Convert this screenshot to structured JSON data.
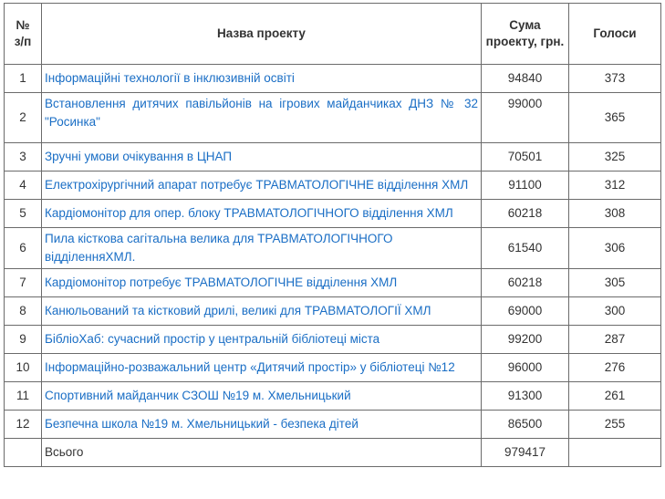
{
  "headers": {
    "num": "№\nз/п",
    "name": "Назва проекту",
    "sum": "Сума проекту, грн.",
    "votes": "Голоси"
  },
  "rows": [
    {
      "num": "1",
      "name": "Інформаційні технології в інклюзивній освіті",
      "sum": "94840",
      "votes": "373"
    },
    {
      "num": "2",
      "name": "Встановлення дитячих павільйонів на ігрових майданчиках ДНЗ № 32 \"Росинка\"",
      "sum": "99000",
      "votes": "365"
    },
    {
      "num": "3",
      "name": "Зручні умови очікування в ЦНАП",
      "sum": "70501",
      "votes": "325"
    },
    {
      "num": "4",
      "name": "Електрохірургічний апарат потребує ТРАВМАТОЛОГІЧНЕ відділення ХМЛ",
      "sum": "91100",
      "votes": "312"
    },
    {
      "num": "5",
      "name": "Кардіомонітор для опер. блоку ТРАВМАТОЛОГІЧНОГО відділення ХМЛ",
      "sum": "60218",
      "votes": "308"
    },
    {
      "num": "6",
      "name": "Пила кісткова сагітальна велика для ТРАВМАТОЛОГІЧНОГО відділенняХМЛ.",
      "sum": "61540",
      "votes": "306"
    },
    {
      "num": "7",
      "name": "Кардіомонітор потребує ТРАВМАТОЛОГІЧНЕ відділення ХМЛ",
      "sum": "60218",
      "votes": "305"
    },
    {
      "num": "8",
      "name": "Канюльований та кістковий дрилі, великі для ТРАВМАТОЛОГІЇ ХМЛ",
      "sum": "69000",
      "votes": "300"
    },
    {
      "num": "9",
      "name": "БібліоХаб: сучасний простір у центральній бібліотеці міста",
      "sum": "99200",
      "votes": "287"
    },
    {
      "num": "10",
      "name": "Інформаційно-розважальний центр «Дитячий простір» у бібліотеці №12",
      "sum": "96000",
      "votes": "276"
    },
    {
      "num": "11",
      "name": "Спортивний майданчик СЗОШ №19 м. Хмельницький",
      "sum": "91300",
      "votes": "261"
    },
    {
      "num": "12",
      "name": "Безпечна школа №19 м. Хмельницький - безпека дітей",
      "sum": "86500",
      "votes": "255"
    }
  ],
  "total": {
    "label": "Всього",
    "sum": "979417"
  }
}
